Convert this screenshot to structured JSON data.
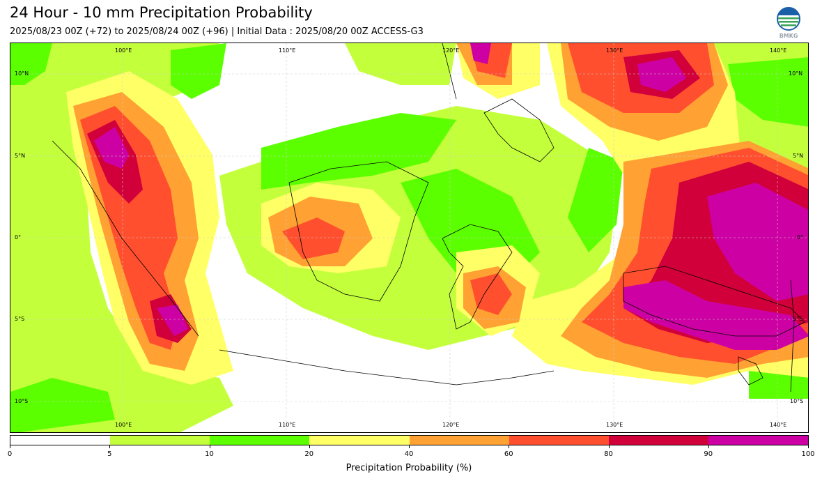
{
  "title": "24 Hour - 10 mm Precipitation Probability",
  "subtitle": "2025/08/23 00Z (+72) to 2025/08/24 00Z (+96) | Initial Data : 2025/08/20 00Z ACCESS-G3",
  "logo": {
    "text": "BMKG",
    "icon": "bmkg-globe-logo"
  },
  "map": {
    "lon_labels": [
      "100°E",
      "110°E",
      "120°E",
      "130°E",
      "140°E"
    ],
    "lat_labels": [
      "10°N",
      "5°N",
      "0°",
      "5°S",
      "10°S"
    ],
    "grid": true
  },
  "colorbar": {
    "title": "Precipitation Probability (%)",
    "ticks": [
      "0",
      "5",
      "10",
      "20",
      "40",
      "60",
      "80",
      "90",
      "100"
    ],
    "colors": [
      "#ffffff",
      "#c4ff3c",
      "#5cff00",
      "#ffff66",
      "#ffa133",
      "#ff4f2e",
      "#d1003a",
      "#cc00a3"
    ]
  }
}
